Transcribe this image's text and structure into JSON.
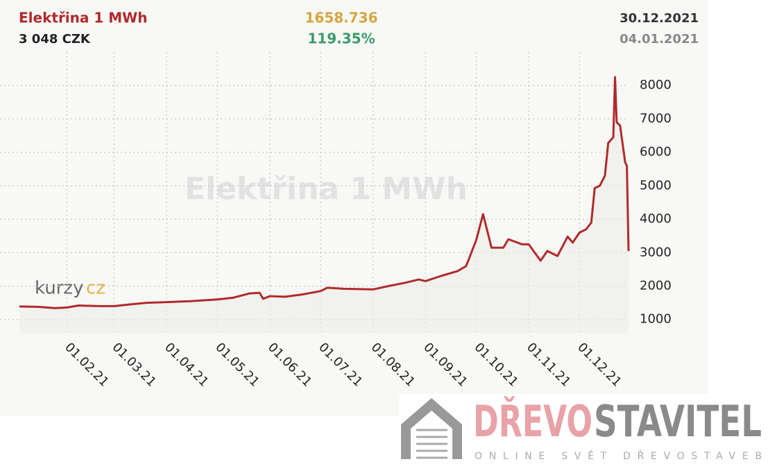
{
  "header": {
    "title": "Elektřina 1 MWh",
    "price": "3 048 CZK",
    "index": "1658.736",
    "change": "119.35%",
    "date_end": "30.12.2021",
    "date_start": "04.01.2021"
  },
  "chart_data": {
    "type": "line",
    "watermark": "Elektřina 1 MWh",
    "color": "#b02a2a",
    "grid": true,
    "x": [
      "2021-01-04",
      "2021-01-15",
      "2021-01-25",
      "2021-02-01",
      "2021-02-08",
      "2021-02-20",
      "2021-03-01",
      "2021-03-10",
      "2021-03-20",
      "2021-04-01",
      "2021-04-15",
      "2021-05-01",
      "2021-05-10",
      "2021-05-20",
      "2021-05-26",
      "2021-05-28",
      "2021-06-01",
      "2021-06-10",
      "2021-06-20",
      "2021-07-01",
      "2021-07-05",
      "2021-07-15",
      "2021-08-01",
      "2021-08-10",
      "2021-08-20",
      "2021-08-28",
      "2021-09-01",
      "2021-09-10",
      "2021-09-20",
      "2021-09-25",
      "2021-10-01",
      "2021-10-05",
      "2021-10-10",
      "2021-10-17",
      "2021-10-20",
      "2021-10-28",
      "2021-11-01",
      "2021-11-08",
      "2021-11-12",
      "2021-11-18",
      "2021-11-24",
      "2021-11-27",
      "2021-12-01",
      "2021-12-05",
      "2021-12-08",
      "2021-12-10",
      "2021-12-13",
      "2021-12-16",
      "2021-12-18",
      "2021-12-21",
      "2021-12-22",
      "2021-12-23",
      "2021-12-25",
      "2021-12-28",
      "2021-12-29",
      "2021-12-30"
    ],
    "values": [
      1390,
      1380,
      1340,
      1360,
      1420,
      1400,
      1400,
      1450,
      1500,
      1520,
      1550,
      1600,
      1650,
      1780,
      1800,
      1620,
      1700,
      1680,
      1750,
      1850,
      1950,
      1920,
      1900,
      2000,
      2100,
      2200,
      2150,
      2300,
      2450,
      2600,
      3380,
      4150,
      3150,
      3150,
      3400,
      3250,
      3250,
      2760,
      3050,
      2900,
      3480,
      3300,
      3600,
      3700,
      3900,
      4930,
      5000,
      5300,
      6280,
      6450,
      8250,
      6900,
      6800,
      5700,
      5600,
      3048
    ],
    "xlim": [
      "2021-01-04",
      "2021-12-30"
    ],
    "xticks": [
      {
        "value": "2021-02-01",
        "label": "01.02.21"
      },
      {
        "value": "2021-03-01",
        "label": "01.03.21"
      },
      {
        "value": "2021-04-01",
        "label": "01.04.21"
      },
      {
        "value": "2021-05-01",
        "label": "01.05.21"
      },
      {
        "value": "2021-06-01",
        "label": "01.06.21"
      },
      {
        "value": "2021-07-01",
        "label": "01.07.21"
      },
      {
        "value": "2021-08-01",
        "label": "01.08.21"
      },
      {
        "value": "2021-09-01",
        "label": "01.09.21"
      },
      {
        "value": "2021-10-01",
        "label": "01.10.21"
      },
      {
        "value": "2021-11-01",
        "label": "01.11.21"
      },
      {
        "value": "2021-12-01",
        "label": "01.12.21"
      }
    ],
    "ylim": [
      600,
      9000
    ],
    "yticks": [
      1000,
      2000,
      3000,
      4000,
      5000,
      6000,
      7000,
      8000
    ]
  },
  "logos": {
    "kurzy": "kurzy",
    "cz": "cz",
    "brand_a": "DŘEVO",
    "brand_b": "STAVITEL",
    "tagline": "ONLINE SVĚT DŘEVOSTAVEB"
  }
}
